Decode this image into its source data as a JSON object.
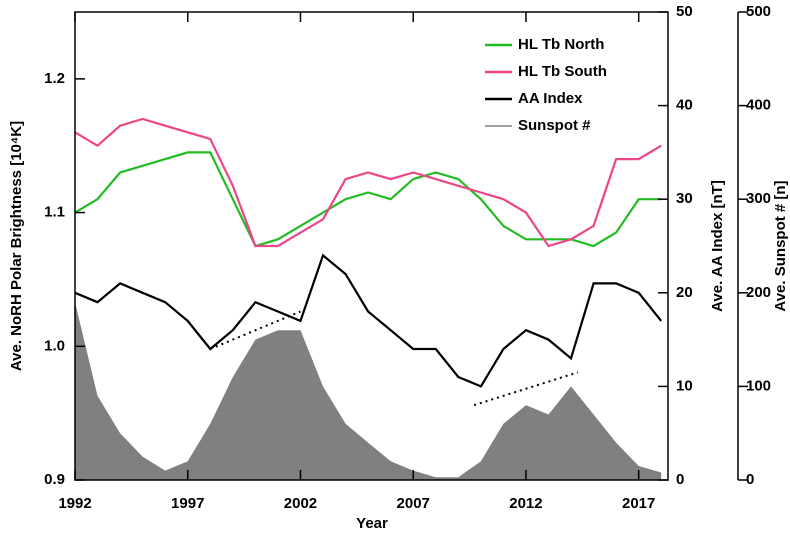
{
  "chart_data": {
    "type": "line",
    "xlabel": "Year",
    "ylabel": "Ave. NoRH Polar Brightness [10⁴K]",
    "y2label": "Ave. AA Index [nT]",
    "y3label": "Ave. Sunspot # [n]",
    "x": [
      1992,
      1993,
      1994,
      1995,
      1996,
      1997,
      1998,
      1999,
      2000,
      2001,
      2002,
      2003,
      2004,
      2005,
      2006,
      2007,
      2008,
      2009,
      2010,
      2011,
      2012,
      2013,
      2014,
      2015,
      2016,
      2017,
      2018
    ],
    "xlim": [
      1992,
      2018.3
    ],
    "xticks": [
      1992,
      1997,
      2002,
      2007,
      2012,
      2017
    ],
    "ylim": [
      0.9,
      1.25
    ],
    "yticks": [
      0.9,
      {
        "value": 1.0,
        "label": "1.0"
      },
      1.1,
      1.2
    ],
    "y2lim": [
      0,
      50
    ],
    "y2ticks": [
      0,
      10,
      20,
      30,
      40,
      50
    ],
    "y3lim": [
      0,
      500
    ],
    "y3ticks": [
      0,
      100,
      200,
      300,
      400,
      500
    ],
    "series": [
      {
        "name": "HL Tb North",
        "color": "#22bb22",
        "axis": "y",
        "kind": "line",
        "values": [
          1.1,
          1.11,
          1.13,
          1.135,
          1.14,
          1.145,
          1.145,
          1.11,
          1.075,
          1.08,
          1.09,
          1.1,
          1.11,
          1.115,
          1.11,
          1.125,
          1.13,
          1.125,
          1.11,
          1.09,
          1.08,
          1.08,
          1.08,
          1.075,
          1.085,
          1.11,
          1.11
        ]
      },
      {
        "name": "HL Tb South",
        "color": "#ee4488",
        "axis": "y",
        "kind": "line",
        "values": [
          1.16,
          1.15,
          1.165,
          1.17,
          1.165,
          1.16,
          1.155,
          1.12,
          1.075,
          1.075,
          1.085,
          1.095,
          1.125,
          1.13,
          1.125,
          1.13,
          1.125,
          1.12,
          1.115,
          1.11,
          1.1,
          1.075,
          1.08,
          1.09,
          1.14,
          1.14,
          1.15
        ]
      },
      {
        "name": "AA Index",
        "color": "#000000",
        "axis": "y2",
        "kind": "line",
        "values": [
          20,
          19,
          21,
          20,
          19,
          17,
          14,
          16,
          19,
          18,
          17,
          24,
          22,
          18,
          16,
          14,
          14,
          11,
          10,
          14,
          16,
          15,
          13,
          21,
          21,
          20,
          17
        ]
      },
      {
        "name": "Sunspot #",
        "color": "#808080",
        "axis": "y3",
        "kind": "area",
        "values": [
          190,
          90,
          50,
          25,
          10,
          20,
          60,
          110,
          150,
          160,
          160,
          100,
          60,
          40,
          20,
          10,
          3,
          3,
          20,
          60,
          80,
          70,
          100,
          70,
          40,
          15,
          8
        ]
      }
    ],
    "trend_lines": [
      {
        "x": [
          1998,
          2002
        ],
        "values": [
          14,
          18
        ]
      },
      {
        "x": [
          2009.7,
          2014.3
        ],
        "values": [
          8,
          11.5
        ]
      }
    ]
  }
}
